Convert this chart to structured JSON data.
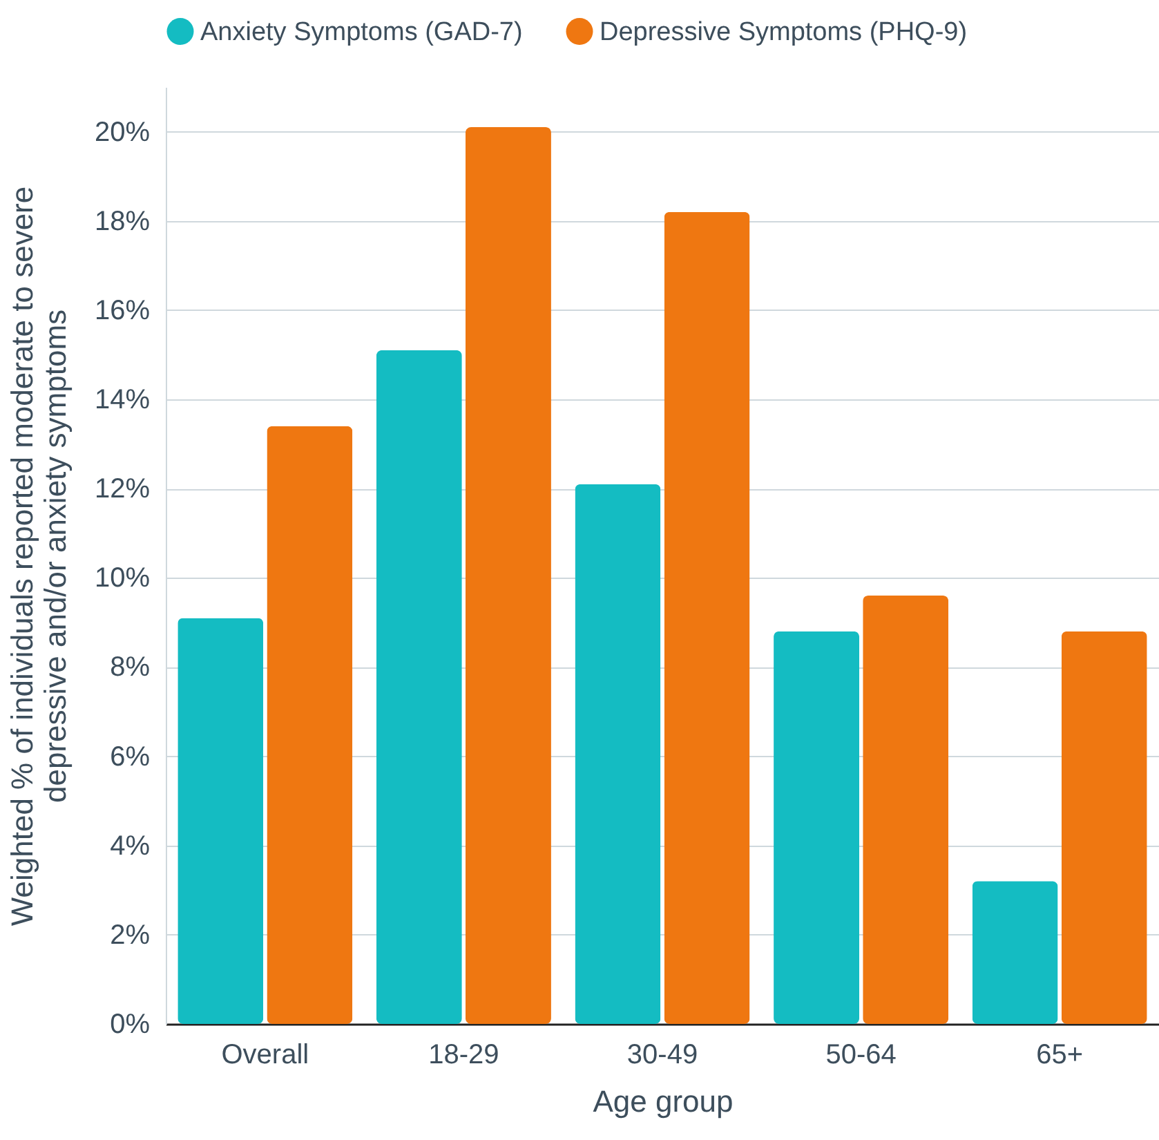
{
  "chart_data": {
    "type": "bar",
    "xlabel": "Age group",
    "ylabel": "Weighted % of individuals reported  moderate to severe\ndepressive and/or anxiety symptoms",
    "categories": [
      "Overall",
      "18-29",
      "30-49",
      "50-64",
      "65+"
    ],
    "series": [
      {
        "name": "Anxiety Symptoms (GAD-7)",
        "color": "#14bcc2",
        "values": [
          9.1,
          15.1,
          12.1,
          8.8,
          3.2
        ]
      },
      {
        "name": "Depressive Symptoms (PHQ-9)",
        "color": "#ef7711",
        "values": [
          13.4,
          20.1,
          18.2,
          9.6,
          8.8
        ]
      }
    ],
    "ylim": [
      0,
      21
    ],
    "yticks": [
      {
        "value": 0,
        "label": "0%"
      },
      {
        "value": 2,
        "label": "2%"
      },
      {
        "value": 4,
        "label": "4%"
      },
      {
        "value": 6,
        "label": "6%"
      },
      {
        "value": 8,
        "label": "8%"
      },
      {
        "value": 10,
        "label": "10%"
      },
      {
        "value": 12,
        "label": "12%"
      },
      {
        "value": 14,
        "label": "14%"
      },
      {
        "value": 16,
        "label": "16%"
      },
      {
        "value": 18,
        "label": "18%"
      },
      {
        "value": 20,
        "label": "20%"
      }
    ],
    "grid": "y",
    "legend": "top"
  }
}
